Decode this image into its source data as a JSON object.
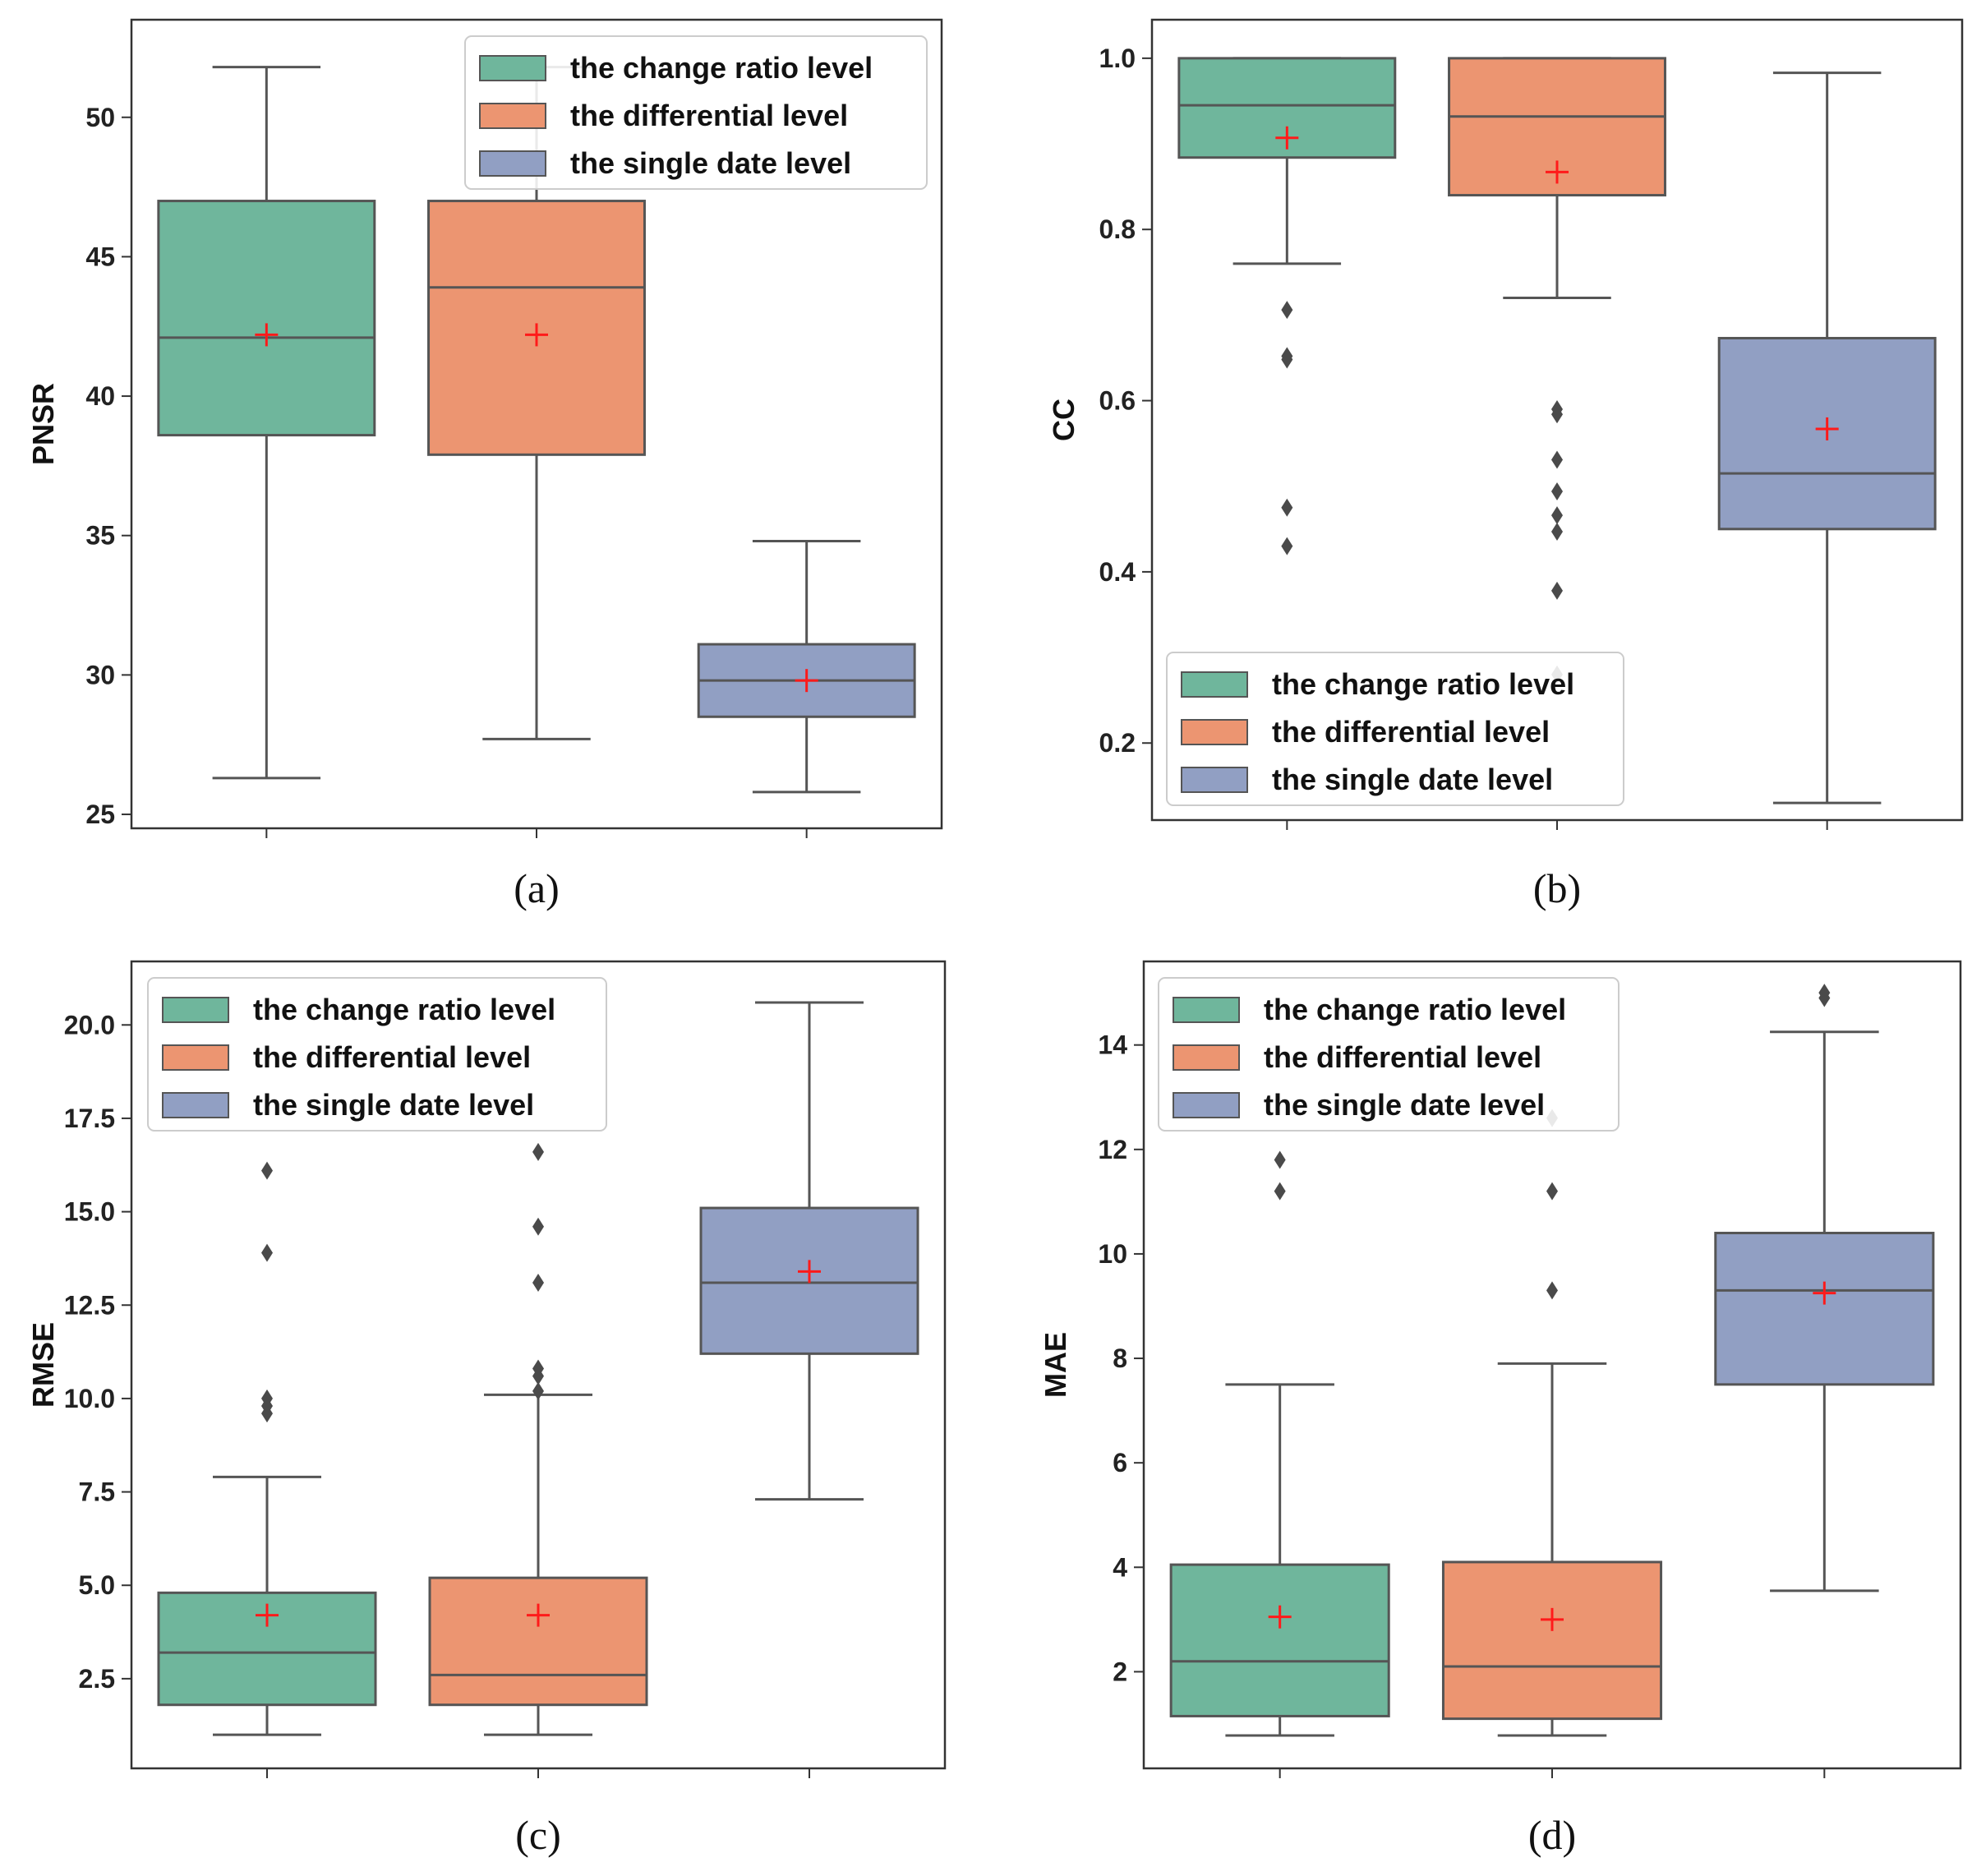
{
  "colors": {
    "change_ratio": "#6fb69c",
    "differential": "#ec9571",
    "single_date": "#919fc3",
    "line": "#555555",
    "mean_marker": "#ff1a1a"
  },
  "legend_labels": [
    "the change ratio level",
    "the differential level",
    "the single date level"
  ],
  "panel_labels": [
    "(a)",
    "(b)",
    "(c)",
    "(d)"
  ],
  "chart_data": [
    {
      "type": "box",
      "panel": "(a)",
      "ylabel": "PNSR",
      "ylim": [
        24.5,
        53.5
      ],
      "yticks": [
        25,
        30,
        35,
        40,
        45,
        50
      ],
      "ytick_labels": [
        "25",
        "30",
        "35",
        "40",
        "45",
        "50"
      ],
      "legend_position": "top-right",
      "series": [
        {
          "name": "the change ratio level",
          "whisker_low": 26.3,
          "q1": 38.6,
          "median": 42.1,
          "q3": 47.0,
          "whisker_high": 51.8,
          "mean": 42.2,
          "outliers": []
        },
        {
          "name": "the differential level",
          "whisker_low": 27.7,
          "q1": 37.9,
          "median": 43.9,
          "q3": 47.0,
          "whisker_high": 51.8,
          "mean": 42.2,
          "outliers": []
        },
        {
          "name": "the single date level",
          "whisker_low": 25.8,
          "q1": 28.5,
          "median": 29.8,
          "q3": 31.1,
          "whisker_high": 34.8,
          "mean": 29.8,
          "outliers": []
        }
      ]
    },
    {
      "type": "box",
      "panel": "(b)",
      "ylabel": "CC",
      "ylim": [
        0.11,
        1.045
      ],
      "yticks": [
        0.2,
        0.4,
        0.6,
        0.8,
        1.0
      ],
      "ytick_labels": [
        "0.2",
        "0.4",
        "0.6",
        "0.8",
        "1.0"
      ],
      "legend_position": "lower-left",
      "series": [
        {
          "name": "the change ratio level",
          "whisker_low": 0.76,
          "q1": 0.884,
          "median": 0.945,
          "q3": 1.0,
          "whisker_high": 1.0,
          "mean": 0.907,
          "outliers": [
            0.706,
            0.652,
            0.648,
            0.475,
            0.43
          ]
        },
        {
          "name": "the differential level",
          "whisker_low": 0.72,
          "q1": 0.84,
          "median": 0.932,
          "q3": 1.0,
          "whisker_high": 1.0,
          "mean": 0.867,
          "outliers": [
            0.59,
            0.584,
            0.531,
            0.494,
            0.466,
            0.447,
            0.378,
            0.28
          ]
        },
        {
          "name": "the single date level",
          "whisker_low": 0.13,
          "q1": 0.45,
          "median": 0.515,
          "q3": 0.673,
          "whisker_high": 0.983,
          "mean": 0.567,
          "outliers": []
        }
      ]
    },
    {
      "type": "box",
      "panel": "(c)",
      "ylabel": "RMSE",
      "ylim": [
        0.1,
        21.7
      ],
      "yticks": [
        2.5,
        5.0,
        7.5,
        10.0,
        12.5,
        15.0,
        17.5,
        20.0
      ],
      "ytick_labels": [
        "2.5",
        "5.0",
        "7.5",
        "10.0",
        "12.5",
        "15.0",
        "17.5",
        "20.0"
      ],
      "legend_position": "top-left",
      "series": [
        {
          "name": "the change ratio level",
          "whisker_low": 1.0,
          "q1": 1.8,
          "median": 3.2,
          "q3": 4.8,
          "whisker_high": 7.9,
          "mean": 4.2,
          "outliers": [
            16.1,
            13.9,
            10.0,
            9.8,
            9.6
          ]
        },
        {
          "name": "the differential level",
          "whisker_low": 1.0,
          "q1": 1.8,
          "median": 2.6,
          "q3": 5.2,
          "whisker_high": 10.1,
          "mean": 4.2,
          "outliers": [
            16.6,
            14.6,
            13.1,
            10.8,
            10.6,
            10.2
          ]
        },
        {
          "name": "the single date level",
          "whisker_low": 7.3,
          "q1": 11.2,
          "median": 13.1,
          "q3": 15.1,
          "whisker_high": 20.6,
          "mean": 13.4,
          "outliers": []
        }
      ]
    },
    {
      "type": "box",
      "panel": "(d)",
      "ylabel": "MAE",
      "ylim": [
        0.15,
        15.6
      ],
      "yticks": [
        2,
        4,
        6,
        8,
        10,
        12,
        14
      ],
      "ytick_labels": [
        "2",
        "4",
        "6",
        "8",
        "10",
        "12",
        "14"
      ],
      "legend_position": "top-left",
      "series": [
        {
          "name": "the change ratio level",
          "whisker_low": 0.78,
          "q1": 1.15,
          "median": 2.2,
          "q3": 4.05,
          "whisker_high": 7.5,
          "mean": 3.05,
          "outliers": [
            11.8,
            11.2
          ]
        },
        {
          "name": "the differential level",
          "whisker_low": 0.78,
          "q1": 1.1,
          "median": 2.1,
          "q3": 4.1,
          "whisker_high": 7.9,
          "mean": 3.0,
          "outliers": [
            12.6,
            11.2,
            9.3
          ]
        },
        {
          "name": "the single date level",
          "whisker_low": 3.55,
          "q1": 7.5,
          "median": 9.3,
          "q3": 10.4,
          "whisker_high": 14.25,
          "mean": 9.25,
          "outliers": [
            15.0,
            14.9
          ]
        }
      ]
    }
  ]
}
